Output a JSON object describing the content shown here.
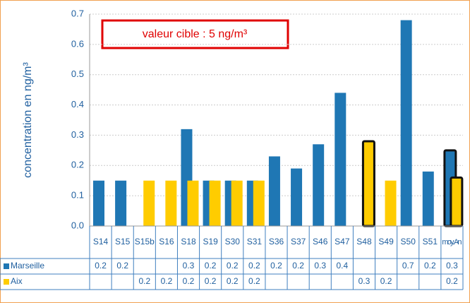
{
  "chart_data": {
    "type": "bar",
    "y_label": "concentration en ng/m³",
    "annotation": "valeur cible : 5 ng/m³",
    "categories": [
      "S14",
      "S15",
      "S15b",
      "S16",
      "S18",
      "S19",
      "S30",
      "S31",
      "S36",
      "S37",
      "S46",
      "S47",
      "S48",
      "S49",
      "S50",
      "S51",
      "moy. An"
    ],
    "series": [
      {
        "name": "Marseille",
        "color": "#1f77b4",
        "values": [
          0.15,
          0.15,
          null,
          null,
          0.32,
          0.15,
          0.15,
          0.15,
          0.23,
          0.19,
          0.27,
          0.44,
          null,
          null,
          0.68,
          0.18,
          0.25
        ],
        "value_labels": [
          "0.2",
          "0.2",
          null,
          null,
          "0.3",
          "0.2",
          "0.2",
          "0.2",
          "0.2",
          "0.2",
          "0.3",
          "0.4",
          null,
          null,
          "0.7",
          "0.2",
          "0.3"
        ],
        "outlined": [
          16
        ]
      },
      {
        "name": "Aix",
        "color": "#ffcc00",
        "values": [
          null,
          null,
          0.15,
          0.15,
          0.15,
          0.15,
          0.15,
          0.15,
          null,
          null,
          null,
          null,
          0.28,
          0.15,
          null,
          null,
          0.16
        ],
        "value_labels": [
          null,
          null,
          "0.2",
          "0.2",
          "0.2",
          "0.2",
          "0.2",
          "0.2",
          null,
          null,
          null,
          null,
          "0.3",
          "0.2",
          null,
          null,
          "0.2"
        ],
        "outlined": [
          12,
          16
        ]
      }
    ],
    "ylim": [
      0,
      0.7
    ],
    "yticks": [
      {
        "value": 0,
        "label": "0.0"
      },
      0.1,
      0.2,
      0.3,
      0.4,
      0.5,
      0.6,
      0.7
    ],
    "grid": true
  }
}
